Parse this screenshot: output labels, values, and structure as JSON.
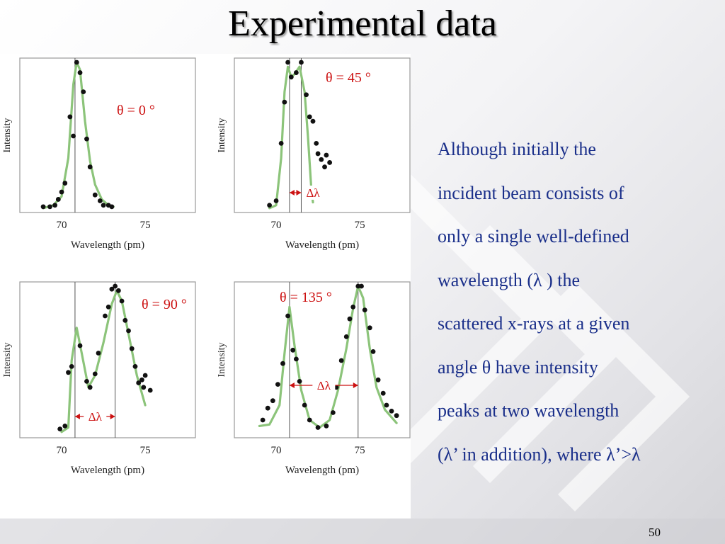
{
  "slide": {
    "title": "Experimental data",
    "page_number": "50",
    "paragraph": [
      "Although initially the",
      "incident beam consists of",
      "only a single well-defined",
      "wavelength (λ ) the",
      "scattered x-rays at a given",
      "angle θ  have intensity",
      "peaks at two wavelength",
      "(λ’ in addition), where λ’>λ"
    ]
  },
  "colors": {
    "text_body": "#1a2f8a",
    "curve": "#8cc47a",
    "points": "#111111",
    "angle_label": "#cc1111",
    "delta_label": "#cc1111",
    "frame": "#9a9a9a"
  },
  "chart_data": [
    {
      "type": "scatter",
      "angle_label": "θ = 0 °",
      "xlabel": "Wavelength (pm)",
      "ylabel": "Intensity",
      "xticks": [
        70,
        75
      ],
      "xlim": [
        67.5,
        78
      ],
      "ylim": [
        0,
        1
      ],
      "grid": false,
      "vlines": [
        70.8
      ],
      "delta_label": null,
      "points": [
        [
          68.9,
          0.02
        ],
        [
          69.3,
          0.02
        ],
        [
          69.6,
          0.03
        ],
        [
          69.8,
          0.07
        ],
        [
          70.0,
          0.12
        ],
        [
          70.2,
          0.18
        ],
        [
          70.5,
          0.63
        ],
        [
          70.7,
          0.5
        ],
        [
          70.9,
          1.0
        ],
        [
          71.1,
          0.93
        ],
        [
          71.3,
          0.8
        ],
        [
          71.5,
          0.48
        ],
        [
          71.7,
          0.29
        ],
        [
          72.0,
          0.1
        ],
        [
          72.3,
          0.06
        ],
        [
          72.5,
          0.03
        ],
        [
          72.8,
          0.03
        ],
        [
          73.0,
          0.02
        ]
      ],
      "curve": [
        [
          68.9,
          0.01
        ],
        [
          69.5,
          0.03
        ],
        [
          70.0,
          0.09
        ],
        [
          70.4,
          0.35
        ],
        [
          70.7,
          0.85
        ],
        [
          70.9,
          1.0
        ],
        [
          71.1,
          0.95
        ],
        [
          71.4,
          0.6
        ],
        [
          71.7,
          0.33
        ],
        [
          72.0,
          0.17
        ],
        [
          72.4,
          0.07
        ],
        [
          72.8,
          0.03
        ],
        [
          73.1,
          0.02
        ]
      ]
    },
    {
      "type": "scatter",
      "angle_label": "θ = 45 °",
      "xlabel": "Wavelength (pm)",
      "ylabel": "Intensity",
      "xticks": [
        70,
        75
      ],
      "xlim": [
        67.5,
        78
      ],
      "ylim": [
        0,
        1
      ],
      "grid": false,
      "vlines": [
        70.8,
        71.5
      ],
      "delta_label": "Δλ",
      "points": [
        [
          69.6,
          0.03
        ],
        [
          70.0,
          0.06
        ],
        [
          70.3,
          0.45
        ],
        [
          70.5,
          0.73
        ],
        [
          70.7,
          1.0
        ],
        [
          70.9,
          0.9
        ],
        [
          71.2,
          0.93
        ],
        [
          71.5,
          1.0
        ],
        [
          71.8,
          0.78
        ],
        [
          72.0,
          0.63
        ],
        [
          72.2,
          0.6
        ],
        [
          72.4,
          0.45
        ],
        [
          72.5,
          0.38
        ],
        [
          72.7,
          0.34
        ],
        [
          72.9,
          0.29
        ],
        [
          73.0,
          0.37
        ],
        [
          73.2,
          0.32
        ]
      ],
      "curve": [
        [
          69.6,
          0.01
        ],
        [
          70.0,
          0.03
        ],
        [
          70.3,
          0.35
        ],
        [
          70.5,
          0.8
        ],
        [
          70.7,
          0.97
        ],
        [
          70.9,
          0.9
        ],
        [
          71.1,
          0.92
        ],
        [
          71.4,
          0.97
        ],
        [
          71.7,
          0.8
        ],
        [
          71.9,
          0.5
        ],
        [
          72.1,
          0.15
        ],
        [
          72.2,
          0.05
        ]
      ]
    },
    {
      "type": "scatter",
      "angle_label": "θ = 90 °",
      "xlabel": "Wavelength (pm)",
      "ylabel": "Intensity",
      "xticks": [
        70,
        75
      ],
      "xlim": [
        67.5,
        78
      ],
      "ylim": [
        0,
        1
      ],
      "grid": false,
      "vlines": [
        70.8,
        73.2
      ],
      "delta_label": "Δλ",
      "points": [
        [
          69.9,
          0.04
        ],
        [
          70.2,
          0.06
        ],
        [
          70.4,
          0.42
        ],
        [
          70.6,
          0.46
        ],
        [
          71.1,
          0.6
        ],
        [
          71.5,
          0.36
        ],
        [
          71.7,
          0.32
        ],
        [
          72.0,
          0.41
        ],
        [
          72.2,
          0.55
        ],
        [
          72.6,
          0.8
        ],
        [
          72.8,
          0.86
        ],
        [
          73.0,
          0.98
        ],
        [
          73.2,
          1.0
        ],
        [
          73.4,
          0.97
        ],
        [
          73.6,
          0.9
        ],
        [
          73.8,
          0.77
        ],
        [
          74.0,
          0.7
        ],
        [
          74.2,
          0.58
        ],
        [
          74.4,
          0.46
        ],
        [
          74.6,
          0.35
        ],
        [
          74.8,
          0.37
        ],
        [
          74.9,
          0.32
        ],
        [
          75.0,
          0.4
        ],
        [
          75.3,
          0.3
        ]
      ],
      "curve": [
        [
          70.0,
          0.02
        ],
        [
          70.4,
          0.05
        ],
        [
          70.6,
          0.5
        ],
        [
          70.9,
          0.72
        ],
        [
          71.2,
          0.55
        ],
        [
          71.6,
          0.32
        ],
        [
          72.0,
          0.4
        ],
        [
          72.5,
          0.62
        ],
        [
          73.0,
          0.88
        ],
        [
          73.3,
          0.97
        ],
        [
          73.6,
          0.9
        ],
        [
          74.0,
          0.68
        ],
        [
          74.5,
          0.4
        ],
        [
          75.0,
          0.2
        ]
      ]
    },
    {
      "type": "scatter",
      "angle_label": "θ = 135 °",
      "xlabel": "Wavelength (pm)",
      "ylabel": "Intensity",
      "xticks": [
        70,
        75
      ],
      "xlim": [
        67.5,
        78
      ],
      "ylim": [
        0,
        1
      ],
      "grid": false,
      "vlines": [
        70.8,
        74.9
      ],
      "delta_label": "Δλ",
      "points": [
        [
          69.2,
          0.1
        ],
        [
          69.5,
          0.18
        ],
        [
          69.8,
          0.23
        ],
        [
          70.1,
          0.34
        ],
        [
          70.4,
          0.48
        ],
        [
          70.7,
          0.8
        ],
        [
          71.0,
          0.57
        ],
        [
          71.2,
          0.51
        ],
        [
          71.4,
          0.36
        ],
        [
          71.7,
          0.2
        ],
        [
          72.0,
          0.1
        ],
        [
          72.5,
          0.05
        ],
        [
          73.0,
          0.06
        ],
        [
          73.4,
          0.15
        ],
        [
          73.6,
          0.32
        ],
        [
          73.9,
          0.5
        ],
        [
          74.2,
          0.66
        ],
        [
          74.4,
          0.78
        ],
        [
          74.6,
          0.86
        ],
        [
          74.9,
          1.0
        ],
        [
          75.1,
          1.0
        ],
        [
          75.3,
          0.84
        ],
        [
          75.6,
          0.72
        ],
        [
          75.8,
          0.56
        ],
        [
          76.1,
          0.37
        ],
        [
          76.4,
          0.28
        ],
        [
          76.6,
          0.2
        ],
        [
          76.9,
          0.16
        ],
        [
          77.2,
          0.13
        ]
      ],
      "curve": [
        [
          69.0,
          0.06
        ],
        [
          69.6,
          0.07
        ],
        [
          70.2,
          0.2
        ],
        [
          70.5,
          0.55
        ],
        [
          70.8,
          0.86
        ],
        [
          71.1,
          0.6
        ],
        [
          71.5,
          0.3
        ],
        [
          72.0,
          0.1
        ],
        [
          72.6,
          0.05
        ],
        [
          73.2,
          0.1
        ],
        [
          73.7,
          0.3
        ],
        [
          74.2,
          0.58
        ],
        [
          74.6,
          0.85
        ],
        [
          74.9,
          1.0
        ],
        [
          75.2,
          0.92
        ],
        [
          75.6,
          0.58
        ],
        [
          76.0,
          0.32
        ],
        [
          76.5,
          0.17
        ],
        [
          77.2,
          0.08
        ]
      ]
    }
  ]
}
